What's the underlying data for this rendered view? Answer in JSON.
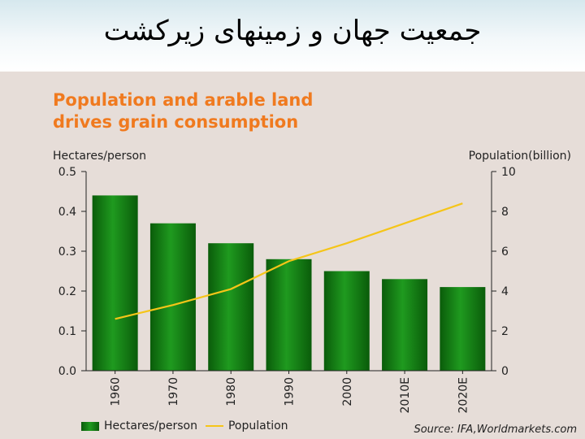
{
  "slide": {
    "title": "جمعیت جهان و زمینهای زیرکشت"
  },
  "chart_data": {
    "type": "bar",
    "title_lines": [
      "Population and arable land",
      "drives grain consumption"
    ],
    "categories": [
      "1960",
      "1970",
      "1980",
      "1990",
      "2000",
      "2010E",
      "2020E"
    ],
    "y_left": {
      "label": "Hectares/person",
      "ylim": [
        0,
        0.5
      ],
      "ticks": [
        "0.0",
        "0.1",
        "0.2",
        "0.3",
        "0.4",
        "0.5"
      ]
    },
    "y_right": {
      "label": "Population(billion)",
      "ylim": [
        0,
        10
      ],
      "ticks": [
        "0",
        "2",
        "4",
        "6",
        "8",
        "10"
      ]
    },
    "series": [
      {
        "name": "Hectares/person",
        "kind": "bar",
        "axis": "left",
        "color": "#118a11",
        "values": [
          0.44,
          0.37,
          0.32,
          0.28,
          0.25,
          0.23,
          0.21
        ]
      },
      {
        "name": "Population",
        "kind": "line",
        "axis": "right",
        "color": "#f5c518",
        "values": [
          2.6,
          3.3,
          4.1,
          5.5,
          6.4,
          7.4,
          8.4
        ]
      }
    ],
    "grid": false,
    "legend_position": "bottom-left",
    "source": "Source: IFA,Worldmarkets.com"
  },
  "colors": {
    "title_orange": "#f07a1f",
    "panel_bg": "#e6ddd8",
    "bar_dark": "#0a5c0a",
    "bar_light": "#1f9a1f"
  }
}
